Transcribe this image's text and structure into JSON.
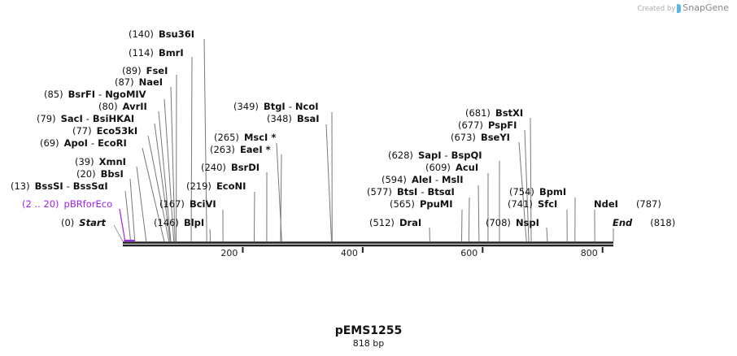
{
  "credit": {
    "prefix": "Created by",
    "brand": "SnapGene"
  },
  "title": "pEMS1255",
  "length": "818 bp",
  "axis": {
    "ticks": [
      "200",
      "400",
      "600",
      "800"
    ],
    "tick_values": [
      200,
      400,
      600,
      800
    ],
    "total_bp": 818
  },
  "feature": {
    "num": "(2 .. 20)",
    "name": "pBRforEco",
    "start": 2,
    "end": 20,
    "color": "#a020f0"
  },
  "start": {
    "num": "(0)",
    "name": "Start",
    "pos": 0
  },
  "end": {
    "num": "(818)",
    "name": "End",
    "pos": 818
  },
  "enzymes": [
    {
      "num": "(140)",
      "name": "Bsu36I",
      "pos": 140
    },
    {
      "num": "(114)",
      "name": "BmrI",
      "pos": 114
    },
    {
      "num": "(89)",
      "name": "FseI",
      "pos": 89
    },
    {
      "num": "(87)",
      "name": "NaeI",
      "pos": 87
    },
    {
      "num": "(85)",
      "name": "BsrFI",
      "name2": "NgoMIV",
      "pos": 85
    },
    {
      "num": "(80)",
      "name": "AvrII",
      "pos": 80
    },
    {
      "num": "(79)",
      "name": "SacI",
      "name2": "BsiHKAI",
      "pos": 79
    },
    {
      "num": "(77)",
      "name": "Eco53kI",
      "pos": 77
    },
    {
      "num": "(69)",
      "name": "ApoI",
      "name2": "EcoRI",
      "pos": 69
    },
    {
      "num": "(39)",
      "name": "XmnI",
      "pos": 39
    },
    {
      "num": "(20)",
      "name": "BbsI",
      "pos": 20
    },
    {
      "num": "(13)",
      "name": "BssSI",
      "name2": "BssSαI",
      "pos": 13
    },
    {
      "num": "(167)",
      "name": "BciVI",
      "pos": 167
    },
    {
      "num": "(146)",
      "name": "BlpI",
      "pos": 146
    },
    {
      "num": "(219)",
      "name": "EcoNI",
      "pos": 219
    },
    {
      "num": "(240)",
      "name": "BsrDI",
      "pos": 240
    },
    {
      "num": "(263)",
      "name": "EaeI *",
      "pos": 263
    },
    {
      "num": "(265)",
      "name": "MscI *",
      "pos": 265
    },
    {
      "num": "(349)",
      "name": "BtgI",
      "name2": "NcoI",
      "pos": 349
    },
    {
      "num": "(348)",
      "name": "BsaI",
      "pos": 348
    },
    {
      "num": "(512)",
      "name": "DraI",
      "pos": 512
    },
    {
      "num": "(565)",
      "name": "PpuMI",
      "pos": 565
    },
    {
      "num": "(577)",
      "name": "BtsI",
      "name2": "BtsαI",
      "pos": 577
    },
    {
      "num": "(594)",
      "name": "AleI",
      "name2": "MslI",
      "pos": 594
    },
    {
      "num": "(609)",
      "name": "AcuI",
      "pos": 609
    },
    {
      "num": "(628)",
      "name": "SapI",
      "name2": "BspQI",
      "pos": 628
    },
    {
      "num": "(673)",
      "name": "BseYI",
      "pos": 673
    },
    {
      "num": "(677)",
      "name": "PspFI",
      "pos": 677
    },
    {
      "num": "(681)",
      "name": "BstXI",
      "pos": 681
    },
    {
      "num": "(708)",
      "name": "NspI",
      "pos": 708
    },
    {
      "num": "(741)",
      "name": "SfcI",
      "pos": 741
    },
    {
      "num": "(754)",
      "name": "BpmI",
      "pos": 754
    },
    {
      "num": "(787)",
      "name": "NdeI",
      "pos": 787,
      "num_after": true
    }
  ]
}
